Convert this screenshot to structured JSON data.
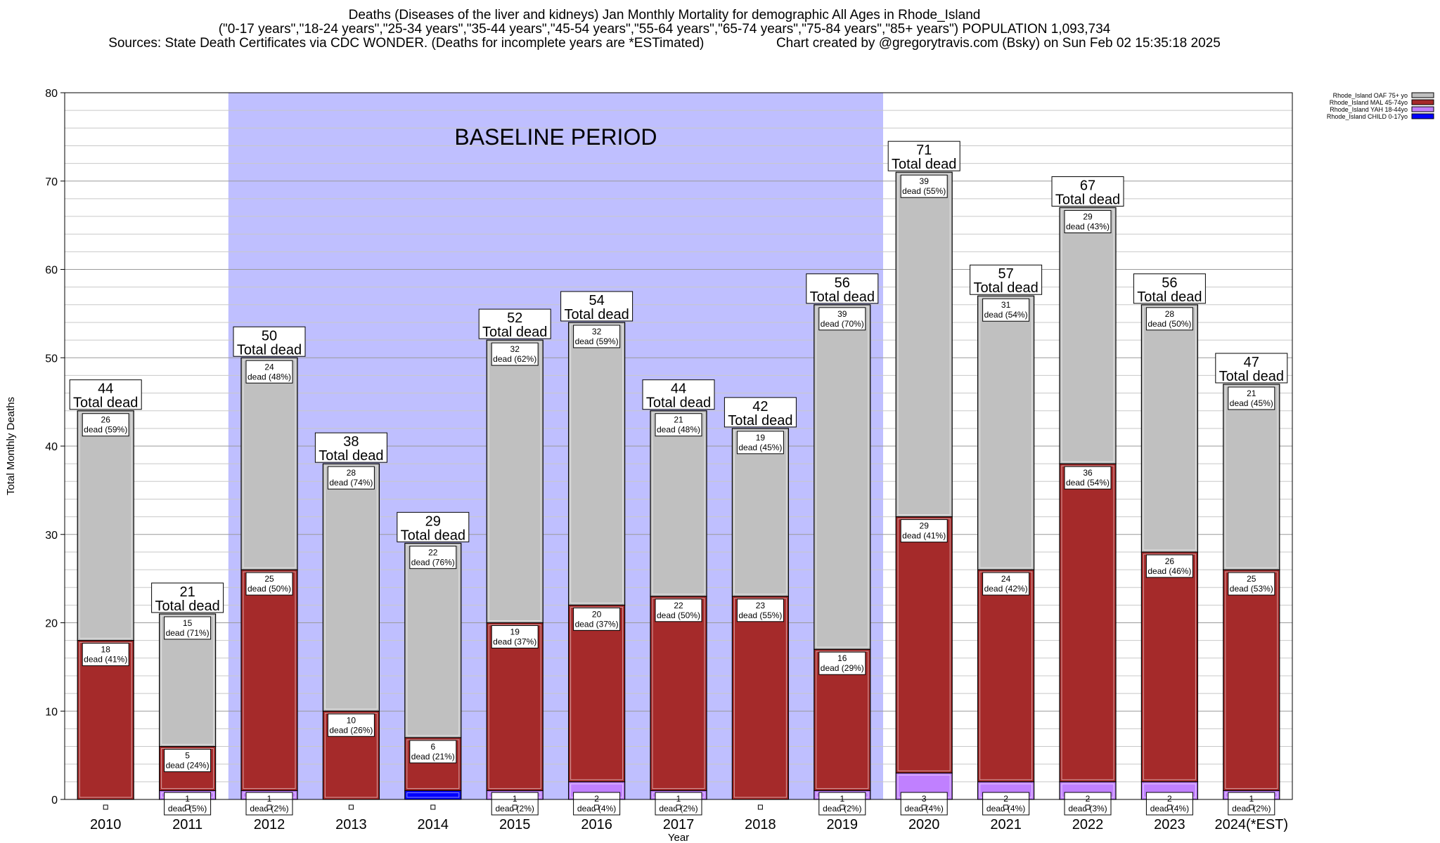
{
  "header": {
    "title": "Deaths (Diseases of the liver and kidneys) Jan Monthly Mortality for demographic All Ages in Rhode_Island",
    "subtitle": "(\"0-17 years\",\"18-24 years\",\"25-34 years\",\"35-44 years\",\"45-54 years\",\"55-64 years\",\"65-74 years\",\"75-84 years\",\"85+ years\") POPULATION 1,093,734",
    "sources": "Sources: State Death Certificates via CDC WONDER. (Deaths for incomplete years are *ESTimated)",
    "credit": "Chart created by @gregorytravis.com (Bsky) on Sun Feb 02 15:35:18 2025"
  },
  "chart_data": {
    "type": "bar",
    "stacked": true,
    "xlabel": "Year",
    "ylabel": "Total Monthly Deaths",
    "ylim": [
      0,
      80
    ],
    "yticks": [
      0,
      10,
      20,
      30,
      40,
      50,
      60,
      70,
      80
    ],
    "grid": true,
    "legend_position": "top-right (outside plot)",
    "baseline_label": "BASELINE PERIOD",
    "baseline_range": [
      "2012",
      "2019"
    ],
    "baseline_color": "#bfbfff",
    "total_label": "Total dead",
    "dead_word": "dead",
    "categories": [
      "2010",
      "2011",
      "2012",
      "2013",
      "2014",
      "2015",
      "2016",
      "2017",
      "2018",
      "2019",
      "2020",
      "2021",
      "2022",
      "2023",
      "2024(*EST)"
    ],
    "series": [
      {
        "name": "Rhode_Island CHILD 0-17yo",
        "color": "#0000ff",
        "values": [
          0,
          0,
          0,
          0,
          1,
          0,
          0,
          0,
          0,
          0,
          0,
          0,
          0,
          0,
          0
        ],
        "labels": [
          null,
          null,
          null,
          null,
          null,
          null,
          null,
          null,
          null,
          null,
          null,
          null,
          null,
          null,
          null
        ]
      },
      {
        "name": "Rhode_Island YAH 18-44yo",
        "color": "#c080ff",
        "values": [
          0,
          1,
          1,
          0,
          0,
          1,
          2,
          1,
          0,
          1,
          3,
          2,
          2,
          2,
          1
        ],
        "labels": [
          null,
          "(5%)",
          "(2%)",
          null,
          null,
          "(2%)",
          "(4%)",
          "(2%)",
          null,
          "(2%)",
          "(4%)",
          "(4%)",
          "(3%)",
          "(4%)",
          "(2%)"
        ]
      },
      {
        "name": "Rhode_Island MAL 45-74yo",
        "color": "#a52a2a",
        "values": [
          18,
          5,
          25,
          10,
          6,
          19,
          20,
          22,
          23,
          16,
          29,
          24,
          36,
          26,
          25
        ],
        "labels": [
          "(41%)",
          "(24%)",
          "(50%)",
          "(26%)",
          "(21%)",
          "(37%)",
          "(37%)",
          "(50%)",
          "(55%)",
          "(29%)",
          "(41%)",
          "(42%)",
          "(54%)",
          "(46%)",
          "(53%)"
        ]
      },
      {
        "name": "Rhode_Island OAF 75+ yo",
        "color": "#c0c0c0",
        "values": [
          26,
          15,
          24,
          28,
          22,
          32,
          32,
          21,
          19,
          39,
          39,
          31,
          29,
          28,
          21
        ],
        "labels": [
          "(59%)",
          "(71%)",
          "(48%)",
          "(74%)",
          "(76%)",
          "(62%)",
          "(59%)",
          "(48%)",
          "(45%)",
          "(70%)",
          "(55%)",
          "(54%)",
          "(43%)",
          "(50%)",
          "(45%)"
        ]
      }
    ],
    "totals": [
      44,
      21,
      50,
      38,
      29,
      52,
      54,
      44,
      42,
      56,
      71,
      57,
      67,
      56,
      47
    ],
    "legend": [
      {
        "name": "Rhode_Island OAF 75+ yo",
        "color": "#c0c0c0"
      },
      {
        "name": "Rhode_Island MAL 45-74yo",
        "color": "#a52a2a"
      },
      {
        "name": "Rhode_Island YAH 18-44yo",
        "color": "#c080ff"
      },
      {
        "name": "Rhode_Island CHILD 0-17yo",
        "color": "#0000ff"
      }
    ]
  }
}
